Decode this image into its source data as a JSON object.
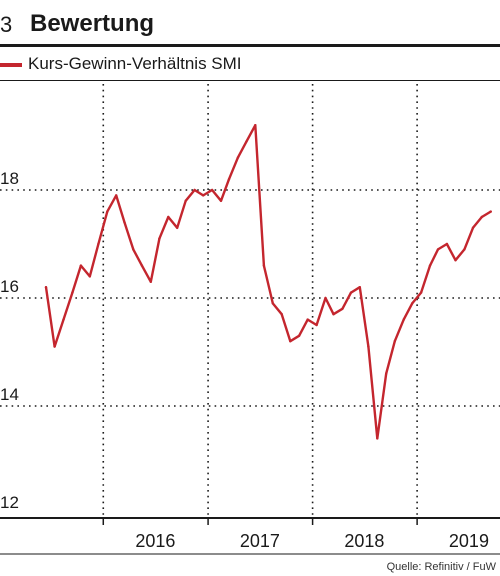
{
  "figure_number": "3",
  "title": "Bewertung",
  "source": "Quelle: Refinitiv / FuW",
  "colors": {
    "series": "#c4262e",
    "grid": "#1a1a1a",
    "text": "#1a1a1a"
  },
  "chart_data": {
    "type": "line",
    "grid": true,
    "legend_position": "top-left",
    "ylim": [
      12,
      20
    ],
    "y_ticks": [
      "12",
      "14",
      "16",
      "18"
    ],
    "x_ticks": [
      "2016",
      "2017",
      "2018",
      "2019"
    ],
    "xlim": [
      "2015-06-01",
      "2019-09-30"
    ],
    "series": [
      {
        "name": "Kurs-Gewinn-Verhältnis SMI",
        "x": [
          "2015-06",
          "2015-07",
          "2015-08",
          "2015-09",
          "2015-10",
          "2015-11",
          "2015-12",
          "2016-01",
          "2016-02",
          "2016-03",
          "2016-04",
          "2016-05",
          "2016-06",
          "2016-07",
          "2016-08",
          "2016-09",
          "2016-10",
          "2016-11",
          "2016-12",
          "2017-01",
          "2017-02",
          "2017-03",
          "2017-04",
          "2017-05",
          "2017-06",
          "2017-07",
          "2017-08",
          "2017-09",
          "2017-10",
          "2017-11",
          "2017-12",
          "2018-01",
          "2018-02",
          "2018-03",
          "2018-04",
          "2018-05",
          "2018-06",
          "2018-07",
          "2018-08",
          "2018-09",
          "2018-10",
          "2018-11",
          "2018-12",
          "2019-01",
          "2019-02",
          "2019-03",
          "2019-04",
          "2019-05",
          "2019-06",
          "2019-07",
          "2019-08",
          "2019-09"
        ],
        "values": [
          16.2,
          15.1,
          15.6,
          16.1,
          16.6,
          16.4,
          17.0,
          17.6,
          17.9,
          17.4,
          16.9,
          16.6,
          16.3,
          17.1,
          17.5,
          17.3,
          17.8,
          18.0,
          17.9,
          18.0,
          17.8,
          18.2,
          18.6,
          18.9,
          19.2,
          16.6,
          15.9,
          15.7,
          15.2,
          15.3,
          15.6,
          15.5,
          16.0,
          15.7,
          15.8,
          16.1,
          16.2,
          15.1,
          13.4,
          14.6,
          15.2,
          15.6,
          15.9,
          16.1,
          16.6,
          16.9,
          17.0,
          16.7,
          16.9,
          17.3,
          17.5,
          17.6
        ]
      }
    ]
  }
}
